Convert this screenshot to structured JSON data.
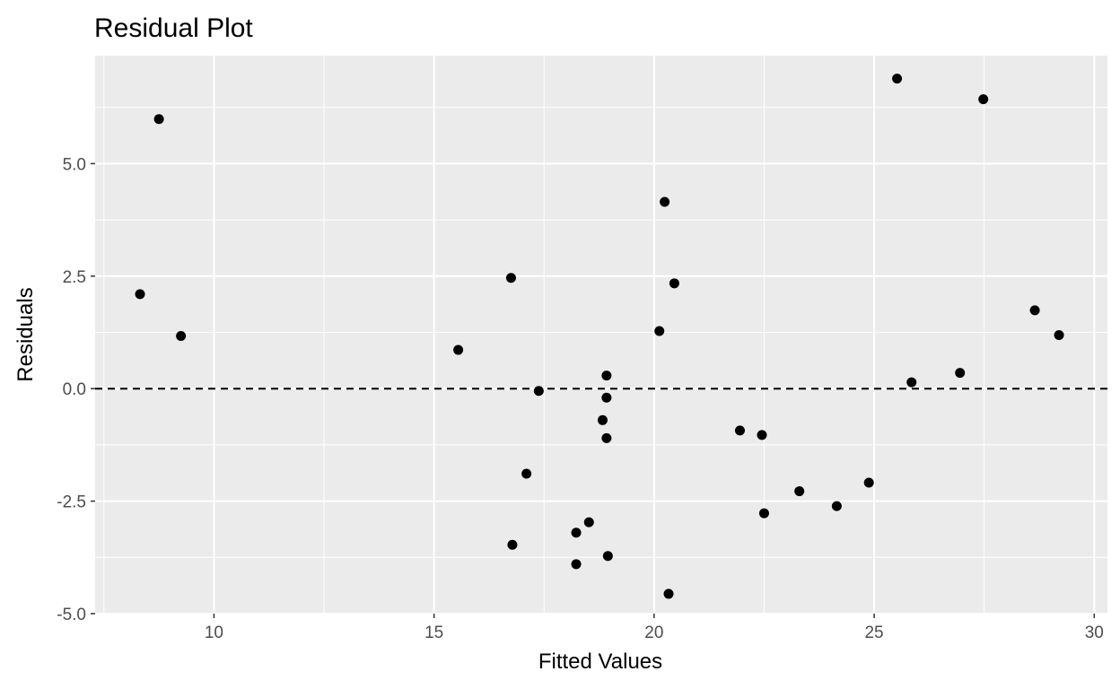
{
  "chart_data": {
    "type": "scatter",
    "title": "Residual Plot",
    "xlabel": "Fitted Values",
    "ylabel": "Residuals",
    "xlim": [
      7.3,
      30.3
    ],
    "ylim": [
      -5.0,
      7.4
    ],
    "xticks": [
      10,
      15,
      20,
      25,
      30
    ],
    "xtick_labels": [
      "10",
      "15",
      "20",
      "25",
      "30"
    ],
    "yticks": [
      -5.0,
      -2.5,
      0.0,
      2.5,
      5.0
    ],
    "ytick_labels": [
      "-5.0",
      "-2.5",
      "0.0",
      "2.5",
      "5.0"
    ],
    "grid": true,
    "reference_line": {
      "y": 0.0,
      "style": "dashed",
      "color": "#000000"
    },
    "background": "#ebebeb",
    "gridline_color": "#ffffff",
    "point_color": "#000000",
    "points": [
      {
        "x": 8.32,
        "y": 2.1
      },
      {
        "x": 8.75,
        "y": 5.99
      },
      {
        "x": 9.25,
        "y": 1.17
      },
      {
        "x": 15.55,
        "y": 0.86
      },
      {
        "x": 16.75,
        "y": 2.46
      },
      {
        "x": 16.78,
        "y": -3.47
      },
      {
        "x": 17.1,
        "y": -1.89
      },
      {
        "x": 17.38,
        "y": -0.05
      },
      {
        "x": 18.23,
        "y": -3.2
      },
      {
        "x": 18.23,
        "y": -3.9
      },
      {
        "x": 18.52,
        "y": -2.97
      },
      {
        "x": 18.83,
        "y": -0.7
      },
      {
        "x": 18.92,
        "y": 0.29
      },
      {
        "x": 18.92,
        "y": -0.2
      },
      {
        "x": 18.92,
        "y": -1.1
      },
      {
        "x": 18.95,
        "y": -3.72
      },
      {
        "x": 20.12,
        "y": 1.28
      },
      {
        "x": 20.24,
        "y": 4.15
      },
      {
        "x": 20.33,
        "y": -4.56
      },
      {
        "x": 20.46,
        "y": 2.34
      },
      {
        "x": 21.95,
        "y": -0.93
      },
      {
        "x": 22.45,
        "y": -1.03
      },
      {
        "x": 22.5,
        "y": -2.77
      },
      {
        "x": 23.3,
        "y": -2.28
      },
      {
        "x": 24.15,
        "y": -2.61
      },
      {
        "x": 24.88,
        "y": -2.09
      },
      {
        "x": 25.52,
        "y": 6.89
      },
      {
        "x": 25.85,
        "y": 0.14
      },
      {
        "x": 26.95,
        "y": 0.35
      },
      {
        "x": 27.48,
        "y": 6.43
      },
      {
        "x": 28.65,
        "y": 1.74
      },
      {
        "x": 29.2,
        "y": 1.19
      }
    ]
  }
}
